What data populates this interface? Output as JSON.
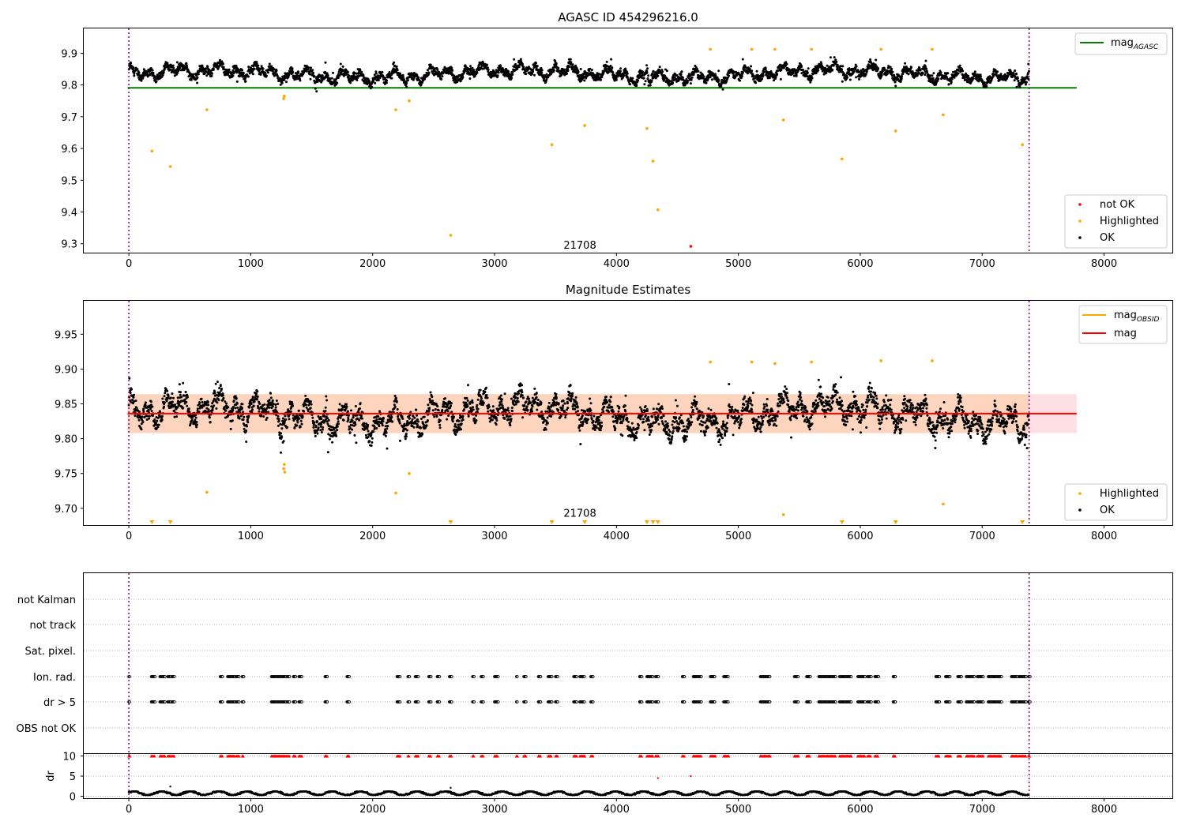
{
  "chart_data": [
    {
      "type": "scatter",
      "title": "AGASC ID 454296216.0",
      "xlim": [
        -370,
        8560
      ],
      "ylim": [
        9.272,
        9.978
      ],
      "xticks": [
        "0",
        "1000",
        "2000",
        "3000",
        "4000",
        "5000",
        "6000",
        "7000",
        "8000"
      ],
      "yticks": [
        "9.3",
        "9.4",
        "9.5",
        "9.6",
        "9.7",
        "9.8",
        "9.9"
      ],
      "vlines": [
        0,
        7385
      ],
      "annotation": {
        "text": "21708",
        "x": 3700,
        "y": 9.29
      },
      "lines": [
        {
          "name": "mag_AGASC",
          "color": "#008000",
          "y": 9.791,
          "xrange": [
            -10,
            7775
          ]
        }
      ],
      "series": [
        {
          "name": "OK",
          "color": "#000000",
          "description": "continuous dense band",
          "y_center": 9.835,
          "y_spread": 0.025,
          "x_range": [
            0,
            7385
          ]
        },
        {
          "name": "Highlighted",
          "color": "#FFA500",
          "points": [
            [
              190,
              9.592
            ],
            [
              340,
              9.543
            ],
            [
              640,
              9.722
            ],
            [
              1270,
              9.757
            ],
            [
              1275,
              9.765
            ],
            [
              2190,
              9.722
            ],
            [
              2300,
              9.75
            ],
            [
              2640,
              9.327
            ],
            [
              3470,
              9.612
            ],
            [
              3740,
              9.672
            ],
            [
              4250,
              9.663
            ],
            [
              4300,
              9.56
            ],
            [
              4340,
              9.407
            ],
            [
              4770,
              9.912
            ],
            [
              5110,
              9.912
            ],
            [
              5300,
              9.912
            ],
            [
              5370,
              9.69
            ],
            [
              5600,
              9.912
            ],
            [
              5850,
              9.567
            ],
            [
              6170,
              9.912
            ],
            [
              6290,
              9.655
            ],
            [
              6590,
              9.912
            ],
            [
              6680,
              9.706
            ],
            [
              7330,
              9.612
            ]
          ]
        },
        {
          "name": "not OK",
          "color": "#FF0000",
          "points": [
            [
              4610,
              9.292
            ]
          ]
        }
      ],
      "legend": [
        {
          "label": "mag",
          "sub": "AGASC",
          "kind": "line",
          "color": "#008000"
        },
        {
          "label": "not OK",
          "kind": "dot",
          "color": "#FF0000"
        },
        {
          "label": "Highlighted",
          "kind": "dot",
          "color": "#FFA500"
        },
        {
          "label": "OK",
          "kind": "dot",
          "color": "#000000"
        }
      ]
    },
    {
      "type": "scatter",
      "title": "Magnitude Estimates",
      "xlim": [
        -370,
        8560
      ],
      "ylim": [
        9.676,
        9.998
      ],
      "xticks": [
        "0",
        "1000",
        "2000",
        "3000",
        "4000",
        "5000",
        "6000",
        "7000",
        "8000"
      ],
      "yticks": [
        "9.70",
        "9.75",
        "9.80",
        "9.85",
        "9.90",
        "9.95"
      ],
      "vlines": [
        0,
        7385
      ],
      "annotation": {
        "text": "21708",
        "x": 3700,
        "y": 9.69
      },
      "lines": [
        {
          "name": "mag",
          "color": "#FF0000",
          "y": 9.836,
          "xrange": [
            -10,
            7775
          ]
        },
        {
          "name": "mag_OBSID",
          "color": "#FFA500",
          "y": 9.836,
          "xrange": [
            0,
            7385
          ]
        }
      ],
      "band": {
        "y": [
          9.808,
          9.864
        ],
        "xrange": [
          -10,
          7775
        ],
        "xsplit": 7385
      },
      "series": [
        {
          "name": "OK",
          "color": "#000000",
          "description": "continuous dense band",
          "y_center": 9.835,
          "y_spread": 0.028,
          "x_range": [
            0,
            7385
          ]
        },
        {
          "name": "Highlighted",
          "color": "#FFA500",
          "points": [
            [
              640,
              9.723
            ],
            [
              1270,
              9.757
            ],
            [
              1275,
              9.763
            ],
            [
              1280,
              9.752
            ],
            [
              2190,
              9.722
            ],
            [
              2300,
              9.75
            ],
            [
              4770,
              9.91
            ],
            [
              5110,
              9.91
            ],
            [
              5300,
              9.908
            ],
            [
              5370,
              9.691
            ],
            [
              5600,
              9.91
            ],
            [
              6170,
              9.912
            ],
            [
              6590,
              9.912
            ],
            [
              6680,
              9.706
            ]
          ]
        },
        {
          "name": "Highlighted (below axis)",
          "color": "#FFA500",
          "marker": "triangle-down",
          "x": [
            190,
            340,
            2640,
            3470,
            3740,
            4250,
            4300,
            4340,
            5850,
            6290,
            7330
          ]
        }
      ],
      "legend": [
        {
          "label": "mag",
          "sub": "OBSID",
          "kind": "line",
          "color": "#FFA500"
        },
        {
          "label": "mag",
          "kind": "line",
          "color": "#FF0000"
        },
        {
          "label": "Highlighted",
          "kind": "dot",
          "color": "#FFA500"
        },
        {
          "label": "OK",
          "kind": "dot",
          "color": "#000000"
        }
      ]
    },
    {
      "type": "scatter",
      "title": "",
      "xlim": [
        -370,
        8560
      ],
      "categories": [
        "not Kalman",
        "not track",
        "Sat. pixel.",
        "Ion. rad.",
        "dr > 5",
        "OBS not OK"
      ],
      "vlines": [
        0,
        7385
      ],
      "flag_segments": [
        [
          0,
          10
        ],
        [
          185,
          215
        ],
        [
          255,
          300
        ],
        [
          320,
          345
        ],
        [
          355,
          375
        ],
        [
          750,
          770
        ],
        [
          810,
          870
        ],
        [
          880,
          905
        ],
        [
          930,
          945
        ],
        [
          1170,
          1290
        ],
        [
          1300,
          1320
        ],
        [
          1350,
          1370
        ],
        [
          1395,
          1420
        ],
        [
          1610,
          1630
        ],
        [
          1790,
          1810
        ],
        [
          2200,
          2225
        ],
        [
          2290,
          2305
        ],
        [
          2350,
          2375
        ],
        [
          2460,
          2480
        ],
        [
          2530,
          2550
        ],
        [
          2630,
          2650
        ],
        [
          2820,
          2835
        ],
        [
          2890,
          2910
        ],
        [
          3000,
          3030
        ],
        [
          3180,
          3190
        ],
        [
          3240,
          3260
        ],
        [
          3360,
          3380
        ],
        [
          3440,
          3470
        ],
        [
          3500,
          3520
        ],
        [
          3650,
          3675
        ],
        [
          3700,
          3740
        ],
        [
          3790,
          3810
        ],
        [
          4190,
          4210
        ],
        [
          4250,
          4300
        ],
        [
          4320,
          4345
        ],
        [
          4540,
          4560
        ],
        [
          4630,
          4700
        ],
        [
          4770,
          4810
        ],
        [
          4880,
          4920
        ],
        [
          5180,
          5260
        ],
        [
          5460,
          5495
        ],
        [
          5560,
          5590
        ],
        [
          5660,
          5800
        ],
        [
          5830,
          5930
        ],
        [
          5980,
          6040
        ],
        [
          6060,
          6090
        ],
        [
          6120,
          6150
        ],
        [
          6270,
          6290
        ],
        [
          6620,
          6650
        ],
        [
          6700,
          6740
        ],
        [
          6800,
          6830
        ],
        [
          6870,
          6940
        ],
        [
          6960,
          7010
        ],
        [
          7050,
          7160
        ],
        [
          7240,
          7290
        ],
        [
          7300,
          7360
        ],
        [
          7380,
          7395
        ]
      ],
      "dr_panel": {
        "ylabel": "dr",
        "yticks": [
          "0",
          "5",
          "10"
        ],
        "ylim": [
          -0.5,
          10.5
        ],
        "baseline": [
          0.3,
          1.2
        ],
        "outliers": [
          [
            340,
            2.4
          ],
          [
            2640,
            2.1
          ],
          [
            4340,
            4.5
          ],
          [
            4610,
            5.0
          ]
        ],
        "clipped_marker": "triangle-up",
        "clipped_color": "#FF0000"
      }
    }
  ]
}
